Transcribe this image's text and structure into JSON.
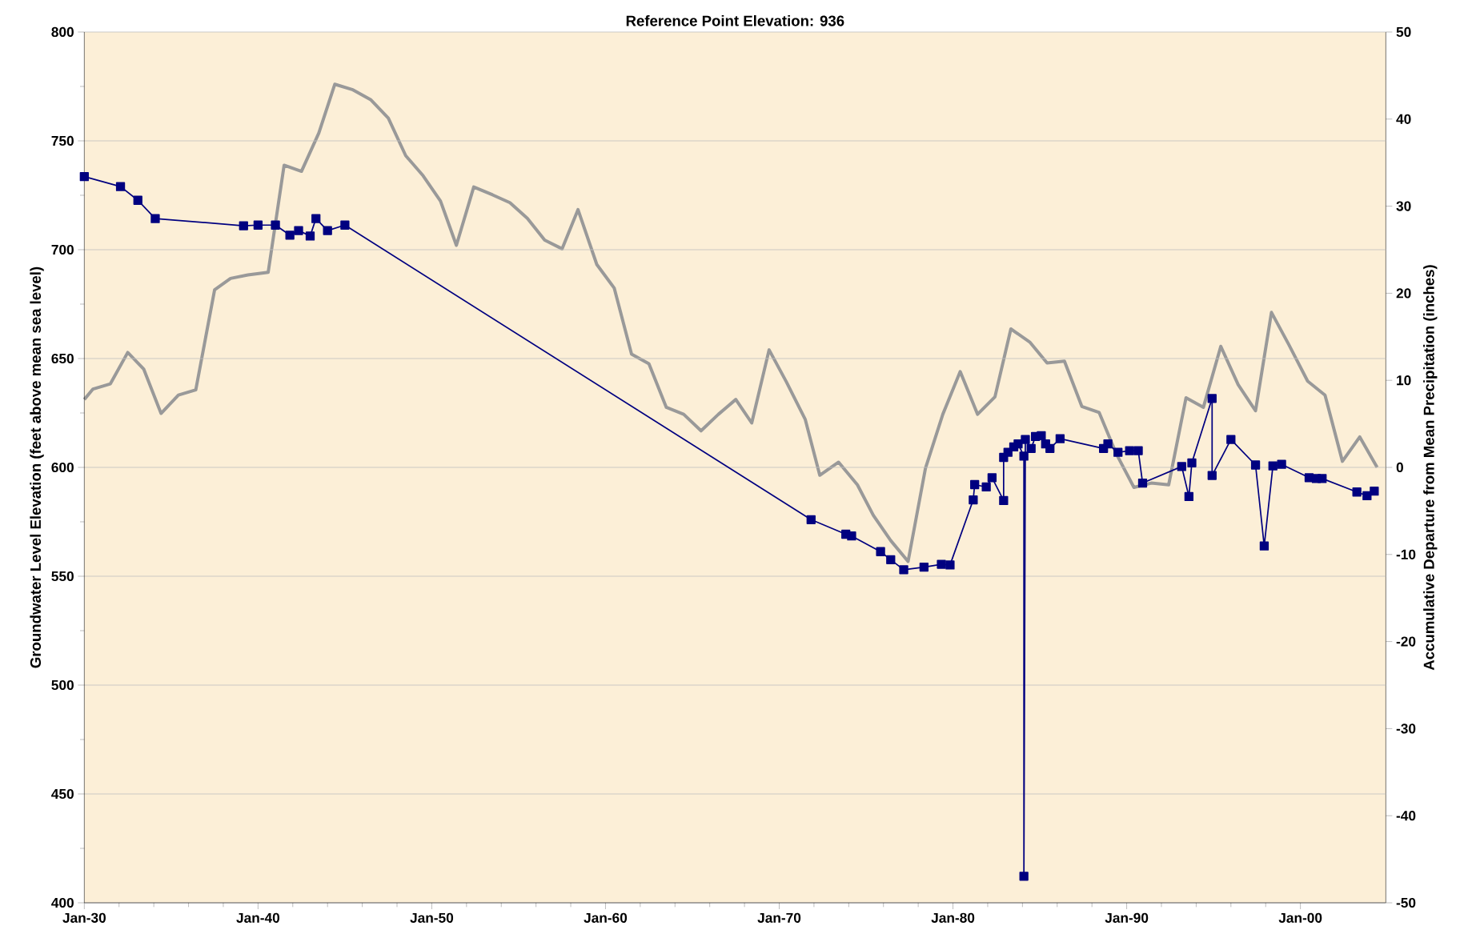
{
  "chart_data": {
    "type": "line",
    "title": "Reference Point Elevation: 936",
    "ylabel": "Groundwater Level Elevation (feet above mean sea level)",
    "y2label": "Accumulative Departure from Mean Precipitation (inches)",
    "xlim": [
      "1930-01",
      "2004-12"
    ],
    "xticks": [
      {
        "value": "1930-01",
        "label": "Jan-30"
      },
      {
        "value": "1940-01",
        "label": "Jan-40"
      },
      {
        "value": "1950-01",
        "label": "Jan-50"
      },
      {
        "value": "1960-01",
        "label": "Jan-60"
      },
      {
        "value": "1970-01",
        "label": "Jan-70"
      },
      {
        "value": "1980-01",
        "label": "Jan-80"
      },
      {
        "value": "1990-01",
        "label": "Jan-90"
      },
      {
        "value": "2000-01",
        "label": "Jan-00"
      }
    ],
    "ylim": [
      400,
      800
    ],
    "yticks": [
      400,
      450,
      500,
      550,
      600,
      650,
      700,
      750,
      800
    ],
    "y2lim": [
      -50,
      50
    ],
    "y2ticks": [
      -50,
      -40,
      -30,
      -20,
      -10,
      0,
      10,
      20,
      30,
      40,
      50
    ],
    "grid": "y",
    "series": [
      {
        "axis": "y2",
        "color": "#999999",
        "marker": "none",
        "x": [
          "1930-01",
          "1930-07",
          "1931-07",
          "1932-07",
          "1933-06",
          "1934-06",
          "1935-06",
          "1936-06",
          "1937-07",
          "1938-06",
          "1939-06",
          "1940-08",
          "1941-07",
          "1942-07",
          "1943-07",
          "1944-06",
          "1945-06",
          "1946-07",
          "1947-07",
          "1948-07",
          "1949-07",
          "1950-07",
          "1951-06",
          "1952-06",
          "1953-07",
          "1954-07",
          "1955-07",
          "1956-07",
          "1957-07",
          "1958-06",
          "1959-07",
          "1960-07",
          "1961-07",
          "1962-07",
          "1963-07",
          "1964-07",
          "1965-07",
          "1966-07",
          "1967-07",
          "1968-06",
          "1969-06",
          "1970-06",
          "1971-07",
          "1972-05",
          "1973-06",
          "1974-07",
          "1975-06",
          "1976-06",
          "1977-06",
          "1978-06",
          "1979-06",
          "1980-06",
          "1981-06",
          "1982-06",
          "1983-05",
          "1984-06",
          "1985-06",
          "1986-06",
          "1987-06",
          "1988-06",
          "1989-06",
          "1990-06",
          "1991-06",
          "1992-06",
          "1993-06",
          "1994-06",
          "1995-06",
          "1996-06",
          "1997-06",
          "1998-05",
          "1999-05",
          "2000-06",
          "2001-06",
          "2002-06",
          "2003-06",
          "2004-06"
        ],
        "values": [
          7.8,
          9.0,
          9.6,
          13.2,
          11.3,
          6.2,
          8.3,
          8.9,
          20.4,
          21.7,
          22.1,
          22.4,
          34.7,
          34.0,
          38.4,
          44.0,
          43.4,
          42.2,
          40.1,
          35.8,
          33.5,
          30.6,
          25.5,
          32.2,
          31.3,
          30.4,
          28.6,
          26.1,
          25.1,
          29.6,
          23.3,
          20.6,
          13.0,
          11.9,
          6.9,
          6.1,
          4.2,
          6.1,
          7.8,
          5.1,
          13.5,
          9.8,
          5.5,
          -0.9,
          0.6,
          -2.0,
          -5.5,
          -8.4,
          -10.8,
          -0.1,
          6.1,
          11.0,
          6.1,
          8.1,
          15.9,
          14.4,
          12.0,
          12.2,
          7.0,
          6.3,
          1.5,
          -2.3,
          -1.8,
          -2.0,
          8.0,
          6.9,
          13.9,
          9.5,
          6.5,
          17.8,
          14.1,
          9.9,
          8.3,
          0.7,
          3.5,
          0
        ]
      },
      {
        "axis": "y",
        "color": "#000080",
        "marker": "square",
        "x": [
          "1930-01",
          "1932-02",
          "1933-02",
          "1934-02",
          "1939-03",
          "1940-01",
          "1941-01",
          "1941-11",
          "1942-05",
          "1943-01",
          "1943-05",
          "1944-01",
          "1945-01",
          "1971-11",
          "1973-11",
          "1974-03",
          "1975-11",
          "1976-06",
          "1977-03",
          "1978-05",
          "1979-05",
          "1979-11",
          "1981-03",
          "1981-04",
          "1981-12",
          "1982-04",
          "1982-12",
          "1982-12",
          "1983-03",
          "1983-07",
          "1983-10",
          "1984-02",
          "1984-02",
          "1984-03",
          "1984-07",
          "1984-10",
          "1985-02",
          "1985-05",
          "1985-08",
          "1986-03",
          "1988-09",
          "1988-12",
          "1989-07",
          "1990-03",
          "1990-09",
          "1990-12",
          "1993-03",
          "1993-08",
          "1993-10",
          "1994-12",
          "1994-12",
          "1996-01",
          "1997-06",
          "1997-12",
          "1998-06",
          "1998-12",
          "2000-07",
          "2000-12",
          "2001-04",
          "2003-04",
          "2003-11",
          "2004-04"
        ],
        "values": [
          733.6,
          729,
          722.7,
          714.3,
          711,
          711.3,
          711.3,
          706.7,
          708.8,
          706.3,
          714.3,
          708.8,
          711.3,
          576.0,
          569.3,
          568.5,
          561.3,
          557.6,
          553.0,
          554.2,
          555.5,
          555.2,
          585.1,
          592.1,
          591.0,
          595.3,
          584.8,
          604.6,
          606.9,
          609.4,
          610.8,
          605.2,
          412.2,
          612.8,
          608.7,
          614.2,
          614.6,
          610.8,
          608.7,
          613.2,
          608.7,
          610.8,
          606.9,
          607.7,
          607.7,
          592.8,
          600.4,
          586.6,
          602.1,
          631.7,
          596.3,
          612.8,
          601.1,
          563.9,
          600.7,
          601.4,
          595.3,
          594.9,
          594.9,
          588.7,
          587.0,
          589.1
        ]
      }
    ]
  }
}
